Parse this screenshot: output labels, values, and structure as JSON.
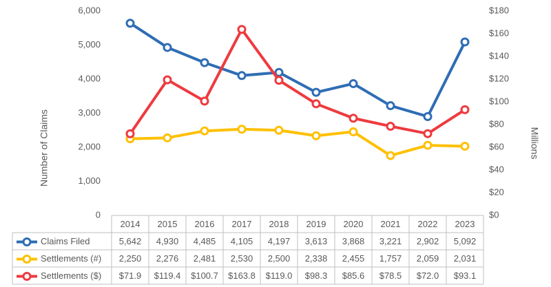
{
  "chart_data": {
    "type": "line",
    "y_label": "Number of Claims",
    "y2_label": "Millions",
    "categories": [
      "2014",
      "2015",
      "2016",
      "2017",
      "2018",
      "2019",
      "2020",
      "2021",
      "2022",
      "2023"
    ],
    "series": [
      {
        "name": "Claims Filed",
        "color": "#2e6db4",
        "axis": "y",
        "values": [
          5642,
          4930,
          4485,
          4105,
          4197,
          3613,
          3868,
          3221,
          2902,
          5092
        ],
        "value_labels": [
          "5,642",
          "4,930",
          "4,485",
          "4,105",
          "4,197",
          "3,613",
          "3,868",
          "3,221",
          "2,902",
          "5,092"
        ]
      },
      {
        "name": "Settlements (#)",
        "color": "#ffc000",
        "axis": "y",
        "values": [
          2250,
          2276,
          2481,
          2530,
          2500,
          2338,
          2455,
          1757,
          2059,
          2031
        ],
        "value_labels": [
          "2,250",
          "2,276",
          "2,481",
          "2,530",
          "2,500",
          "2,338",
          "2,455",
          "1,757",
          "2,059",
          "2,031"
        ]
      },
      {
        "name": "Settlements ($)",
        "color": "#ee3a3f",
        "axis": "y2",
        "values": [
          71.9,
          119.4,
          100.7,
          163.8,
          119.0,
          98.3,
          85.6,
          78.5,
          72.0,
          93.1
        ],
        "value_labels": [
          "$71.9",
          "$119.4",
          "$100.7",
          "$163.8",
          "$119.0",
          "$98.3",
          "$85.6",
          "$78.5",
          "$72.0",
          "$93.1"
        ]
      }
    ],
    "ylim": [
      0,
      6000
    ],
    "yticks": [
      0,
      {
        "value": 1000,
        "label": "1,000"
      },
      {
        "value": 2000,
        "label": "2,000"
      },
      {
        "value": 3000,
        "label": "3,000"
      },
      {
        "value": 4000,
        "label": "4,000"
      },
      {
        "value": 5000,
        "label": "5,000"
      },
      {
        "value": 6000,
        "label": "6,000"
      }
    ],
    "y2lim": [
      0,
      180
    ],
    "y2ticks": [
      {
        "value": 0,
        "label": "$0"
      },
      {
        "value": 20,
        "label": "$20"
      },
      {
        "value": 40,
        "label": "$40"
      },
      {
        "value": 60,
        "label": "$60"
      },
      {
        "value": 80,
        "label": "$80"
      },
      {
        "value": 100,
        "label": "$100"
      },
      {
        "value": 120,
        "label": "$120"
      },
      {
        "value": 140,
        "label": "$140"
      },
      {
        "value": 160,
        "label": "$160"
      },
      {
        "value": 180,
        "label": "$180"
      }
    ]
  }
}
